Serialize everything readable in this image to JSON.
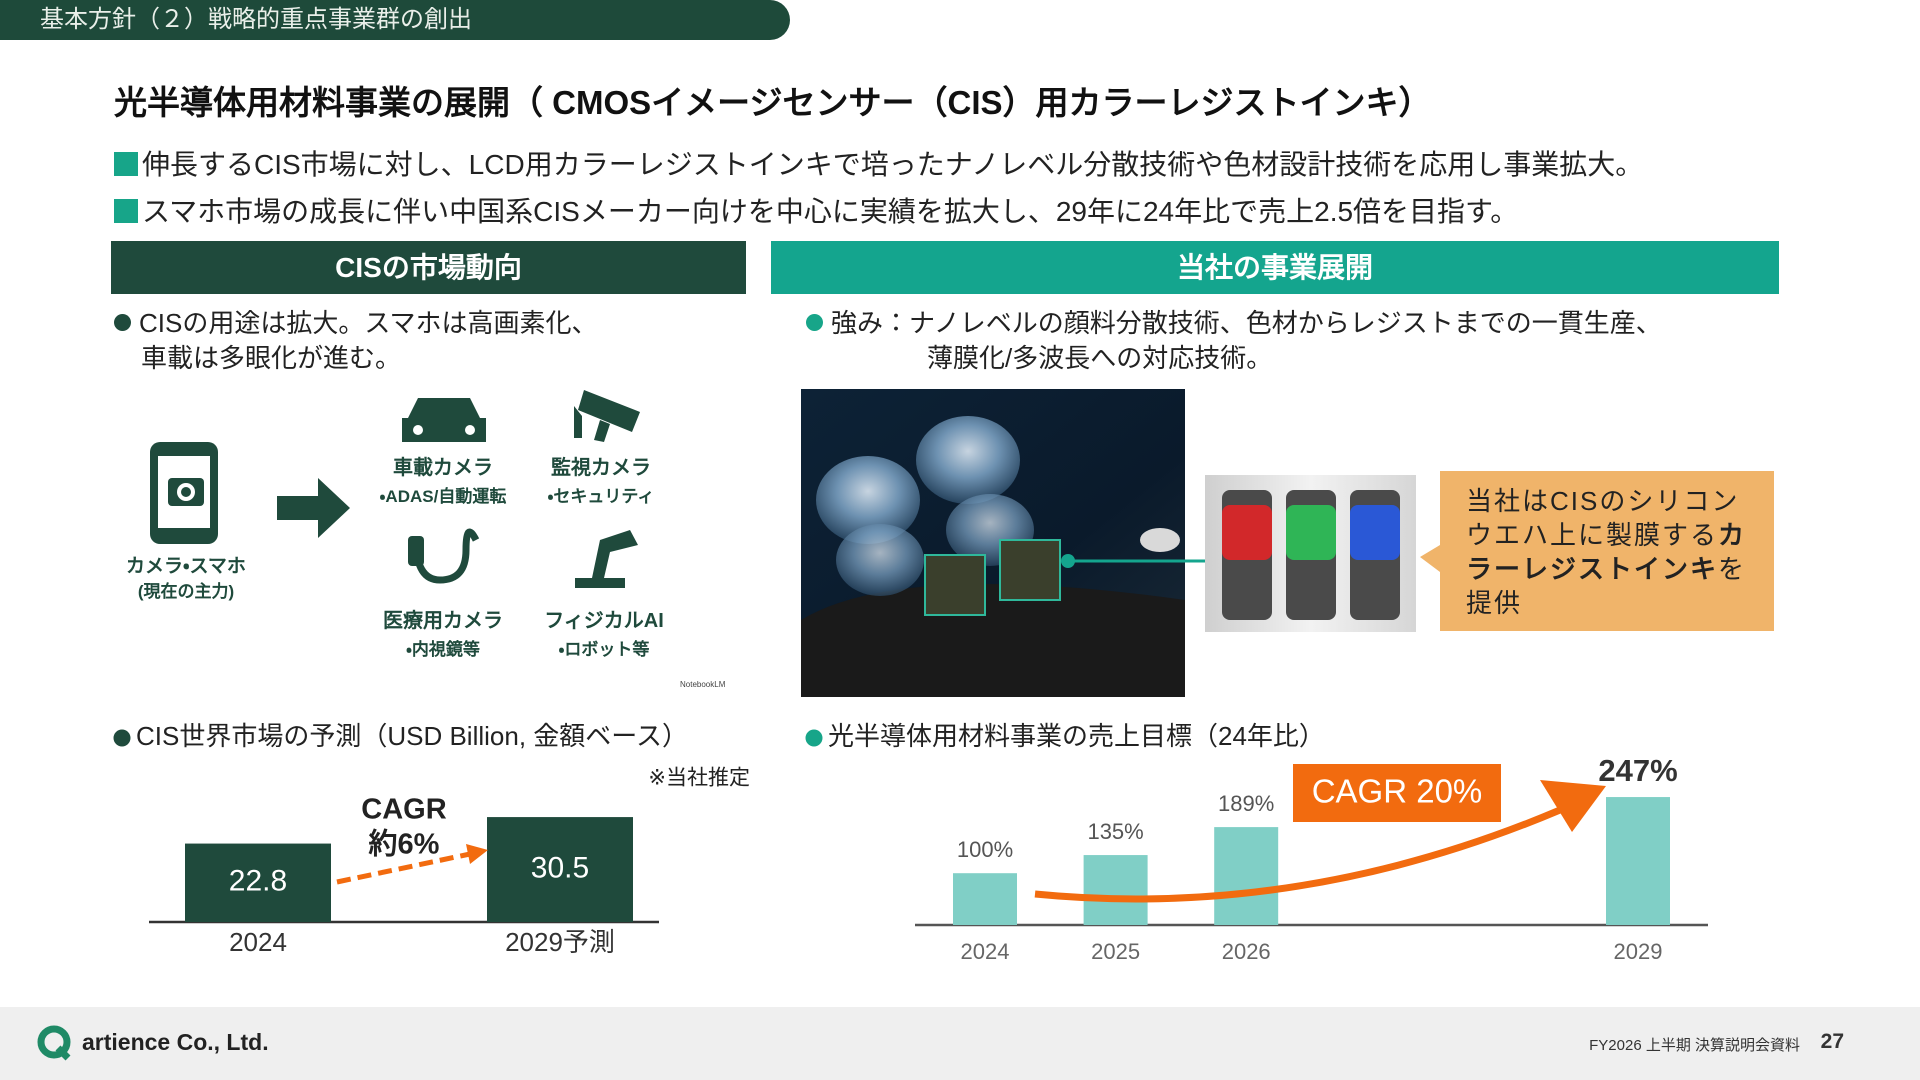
{
  "header": {
    "section": "基本方針（２）戦略的重点事業群の創出",
    "title": "光半導体用材料事業の展開（ CMOSイメージセンサー（CIS）用カラーレジストインキ）"
  },
  "bullets": [
    "伸長するCIS市場に対し、LCD用カラーレジストインキで培ったナノレベル分散技術や色材設計技術を応用し事業拡大。",
    "スマホ市場の成長に伴い中国系CISメーカー向けを中心に実績を拡大し、29年に24年比で売上2.5倍を目指す。"
  ],
  "left": {
    "heading": "CISの市場動向",
    "bullet": [
      "CISの用途は拡大。スマホは高画素化、",
      "車載は多眼化が進む。"
    ],
    "phone_label": [
      "カメラ・スマホ",
      "(現在の主力)"
    ],
    "uses": [
      {
        "label": "車載カメラ",
        "sub": "・ADAS/自動運転"
      },
      {
        "label": "監視カメラ",
        "sub": "・セキュリティ"
      },
      {
        "label": "医療用カメラ",
        "sub": "・内視鏡等"
      },
      {
        "label": "フィジカルAI",
        "sub": "・ロボット等"
      }
    ],
    "credit": "NotebookLM"
  },
  "right": {
    "heading": "当社の事業展開",
    "bullet": [
      "強み：ナノレベルの顔料分散技術、色材からレジストまでの一貫生産、",
      "薄膜化/多波長への対応技術。"
    ],
    "callout": {
      "text1": "当社はCISのシリコンウエハ上に製膜する",
      "bold": "カラーレジストインキ",
      "text2": "を提供"
    }
  },
  "chart_data": [
    {
      "type": "bar",
      "title": "CIS世界市場の予測（USD Billion, 金額ベース）",
      "note": "※当社推定",
      "categories": [
        "2024",
        "2029予測"
      ],
      "values": [
        22.8,
        30.5
      ],
      "color": "#1f4a3c",
      "annotation": [
        "CAGR",
        "約6%"
      ],
      "annotation_color": "#f26b0f"
    },
    {
      "type": "bar",
      "title": "光半導体用材料事業の売上目標（24年比）",
      "x": [
        2024,
        2025,
        2026,
        2029
      ],
      "values": [
        100,
        135,
        189,
        247
      ],
      "value_labels": [
        "100%",
        "135%",
        "189%",
        "247%"
      ],
      "color": "#80cfc6",
      "annotation": "CAGR 20%",
      "annotation_color": "#f26b0f"
    }
  ],
  "footer": {
    "company": "artience Co., Ltd.",
    "document": "FY2026 上半期 決算説明会資料",
    "page": "27"
  }
}
